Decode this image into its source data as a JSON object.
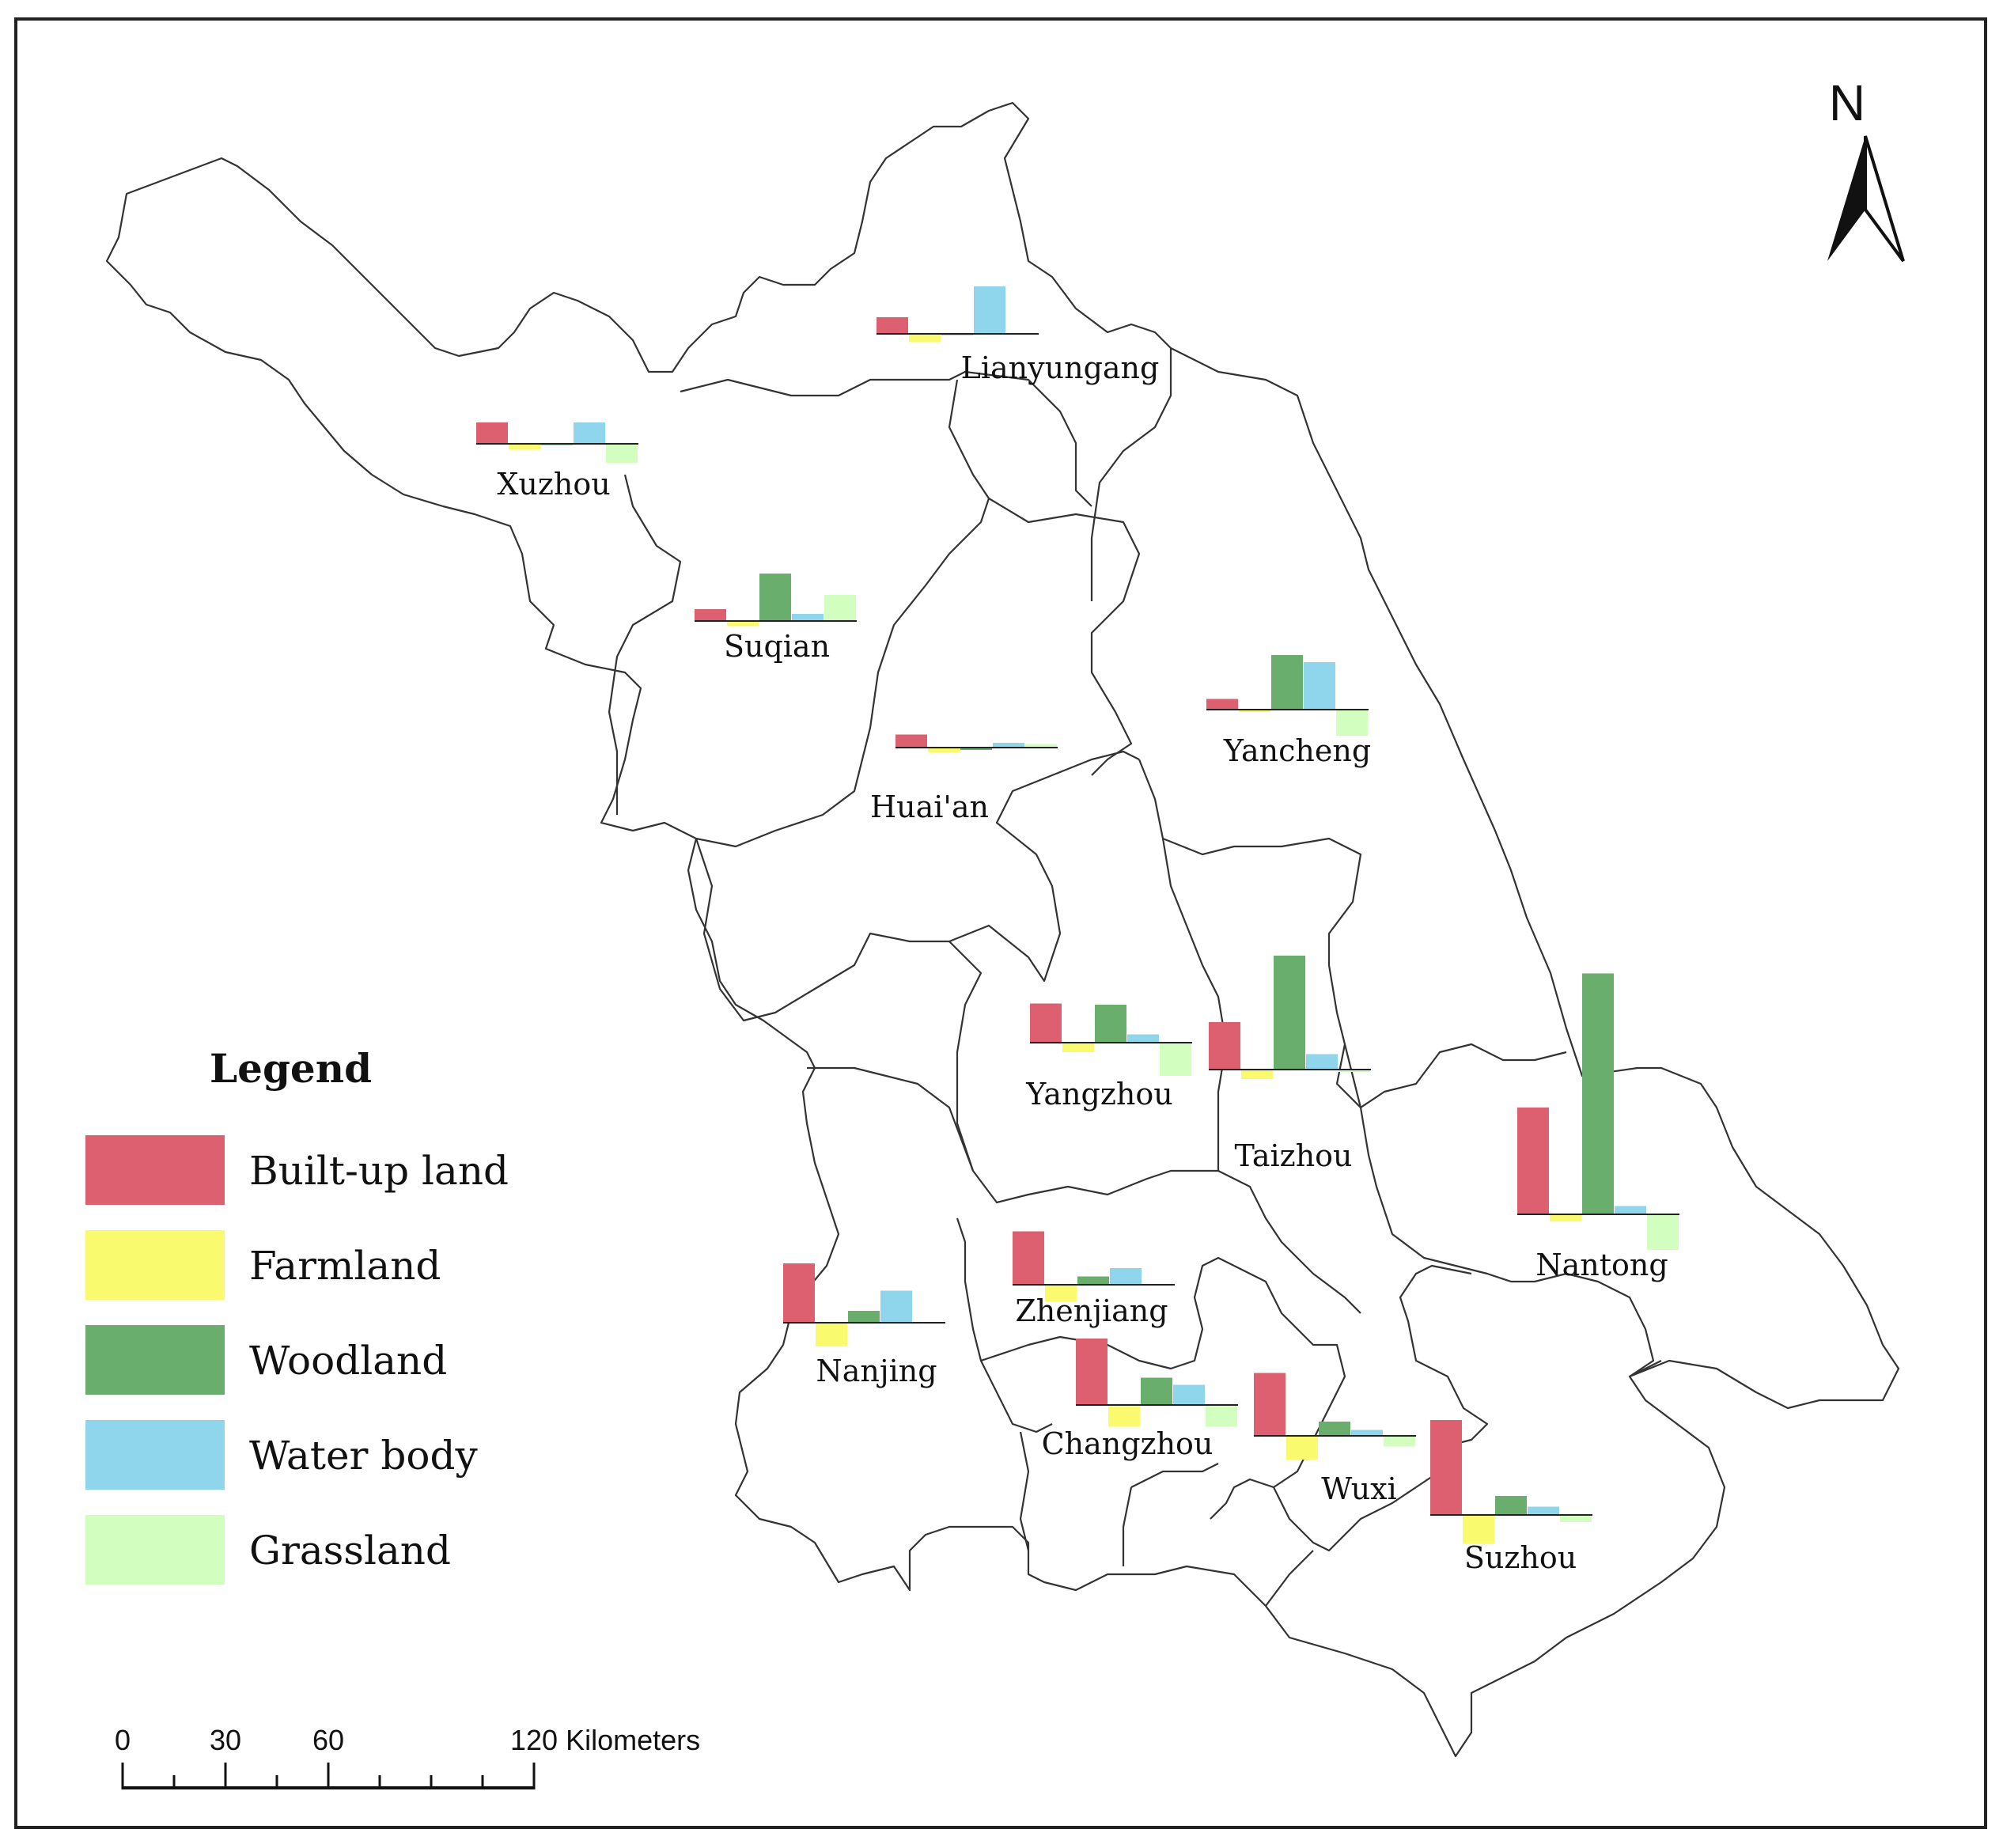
{
  "legend": {
    "title": "Legend",
    "items": [
      {
        "label": "Built-up land",
        "color": "#dc6070"
      },
      {
        "label": "Farmland",
        "color": "#fafa6e"
      },
      {
        "label": "Woodland",
        "color": "#6aae6e"
      },
      {
        "label": "Water body",
        "color": "#8fd6ec"
      },
      {
        "label": "Grassland",
        "color": "#d2ffc0"
      }
    ]
  },
  "north_arrow": {
    "label": "N"
  },
  "scale_bar": {
    "ticks": [
      "0",
      "30",
      "60",
      "120 Kilometers"
    ]
  },
  "cities": [
    {
      "name": "Lianyungang",
      "values": [
        0.14,
        -0.07,
        0,
        0.4,
        0
      ]
    },
    {
      "name": "Xuzhou",
      "values": [
        0.18,
        -0.05,
        0,
        0.18,
        -0.16
      ]
    },
    {
      "name": "Suqian",
      "values": [
        0.1,
        -0.04,
        0.4,
        0.06,
        0.22
      ]
    },
    {
      "name": "Huai'an",
      "values": [
        0.11,
        -0.04,
        -0.02,
        0.04,
        0.03
      ]
    },
    {
      "name": "Yancheng",
      "values": [
        0.09,
        -0.02,
        0.46,
        0.4,
        -0.22
      ]
    },
    {
      "name": "Yangzhou",
      "values": [
        0.33,
        -0.08,
        0.32,
        0.07,
        -0.28
      ]
    },
    {
      "name": "Taizhou",
      "values": [
        0.4,
        -0.08,
        0.96,
        0.13,
        -0.02
      ]
    },
    {
      "name": "Nantong",
      "values": [
        0.9,
        -0.06,
        2.03,
        0.07,
        -0.3
      ]
    },
    {
      "name": "Zhenjiang",
      "values": [
        0.45,
        -0.14,
        0.07,
        0.14,
        -0.01
      ]
    },
    {
      "name": "Nanjing",
      "values": [
        0.5,
        -0.2,
        0.1,
        0.27,
        0
      ]
    },
    {
      "name": "Changzhou",
      "values": [
        0.56,
        -0.18,
        0.23,
        0.17,
        -0.18
      ]
    },
    {
      "name": "Wuxi",
      "values": [
        0.53,
        -0.2,
        0.12,
        0.05,
        -0.09
      ]
    },
    {
      "name": "Suzhou",
      "values": [
        0.8,
        -0.24,
        0.16,
        0.07,
        -0.06
      ]
    }
  ]
}
